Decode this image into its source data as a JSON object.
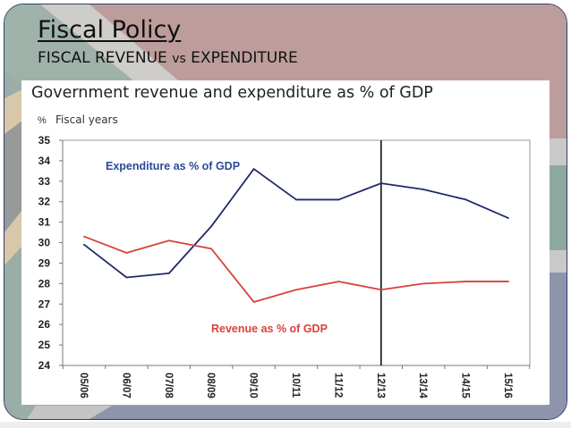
{
  "slide": {
    "title": "Fiscal Policy",
    "subtitle_part1": "FISCAL REVENUE ",
    "subtitle_vs": "vs",
    "subtitle_part2": " EXPENDITURE"
  },
  "colors": {
    "expenditure": "#1f2a6b",
    "revenue": "#d9413a",
    "expenditure_label": "#2b4a9a",
    "revenue_label": "#d9413a"
  },
  "chart_data": {
    "type": "line",
    "title": "Government revenue and expenditure as % of GDP",
    "ylabel": "%",
    "xlabel": "Fiscal years",
    "ylim": [
      24,
      35
    ],
    "yticks": [
      24,
      25,
      26,
      27,
      28,
      29,
      30,
      31,
      32,
      33,
      34,
      35
    ],
    "categories": [
      "05/06",
      "06/07",
      "07/08",
      "08/09",
      "09/10",
      "10/11",
      "11/12",
      "12/13",
      "13/14",
      "14/15",
      "15/16"
    ],
    "series": [
      {
        "name": "Expenditure as % of GDP",
        "values": [
          29.9,
          28.3,
          28.5,
          30.8,
          33.6,
          32.1,
          32.1,
          32.9,
          32.6,
          32.1,
          31.2
        ]
      },
      {
        "name": "Revenue as % of GDP",
        "values": [
          30.3,
          29.5,
          30.1,
          29.7,
          27.1,
          27.7,
          28.1,
          27.7,
          28.0,
          28.1,
          28.1
        ]
      }
    ],
    "annotations": [
      {
        "type": "vertical-line",
        "at_category": "12/13"
      }
    ],
    "grid": false,
    "legend": "inline labels"
  }
}
